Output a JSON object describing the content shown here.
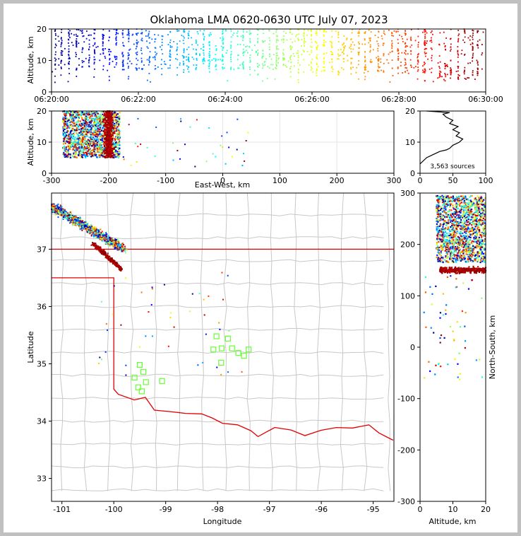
{
  "title": "Oklahoma LMA 0620-0630 UTC July 07, 2023",
  "source_count_label": "3,563 sources",
  "colors": {
    "state_border": "#e00000",
    "county_line": "#c8c8c8",
    "station": "#66ff33",
    "frame": "#c0c0c0"
  },
  "chart_data": [
    {
      "type": "scatter",
      "id": "time_height",
      "xlabel": "",
      "ylabel": "Altitude, km",
      "xlim": [
        "06:20:00",
        "06:30:00"
      ],
      "ylim": [
        0,
        20
      ],
      "xticks": [
        "06:20:00",
        "06:22:00",
        "06:24:00",
        "06:26:00",
        "06:28:00",
        "06:30:00"
      ],
      "yticks": [
        "0",
        "10",
        "20"
      ],
      "color_scale": "time (blue→cyan→green→yellow→orange→red)"
    },
    {
      "type": "scatter",
      "id": "ew_height",
      "xlabel": "East-West, km",
      "ylabel": "Altitude, km",
      "xlim": [
        -300,
        300
      ],
      "ylim": [
        0,
        20
      ],
      "xticks": [
        "-300",
        "-200",
        "-100",
        "0",
        "100",
        "200",
        "300"
      ],
      "yticks": [
        "0",
        "10",
        "20"
      ],
      "grid": true
    },
    {
      "type": "line",
      "id": "alt_histogram",
      "xlabel": "",
      "ylabel": "",
      "xlim": [
        0,
        100
      ],
      "ylim": [
        0,
        20
      ],
      "xticks": [
        "0",
        "50",
        "100"
      ],
      "yticks": [
        "0",
        "10",
        "20"
      ],
      "profile": [
        [
          0,
          3
        ],
        [
          10,
          5
        ],
        [
          20,
          6
        ],
        [
          30,
          7
        ],
        [
          40,
          7.5
        ],
        [
          45,
          8
        ],
        [
          50,
          9
        ],
        [
          60,
          10
        ],
        [
          65,
          11
        ],
        [
          55,
          12
        ],
        [
          60,
          13
        ],
        [
          50,
          14
        ],
        [
          58,
          15
        ],
        [
          45,
          16
        ],
        [
          50,
          17
        ],
        [
          40,
          18
        ],
        [
          35,
          19
        ],
        [
          45,
          19.5
        ],
        [
          10,
          20
        ]
      ]
    },
    {
      "type": "scatter",
      "id": "plan_view",
      "xlabel": "Longitude",
      "ylabel": "Latitude",
      "xlim": [
        -101.2,
        -94.6
      ],
      "ylim": [
        32.6,
        37.98
      ],
      "xticks": [
        "-101",
        "-100",
        "-99",
        "-98",
        "-97",
        "-96",
        "-95"
      ],
      "yticks": [
        "33",
        "34",
        "35",
        "36",
        "37"
      ],
      "stations": [
        [
          -99.5,
          34.98
        ],
        [
          -99.43,
          34.86
        ],
        [
          -99.6,
          34.76
        ],
        [
          -99.38,
          34.68
        ],
        [
          -99.07,
          34.7
        ],
        [
          -99.53,
          34.59
        ],
        [
          -99.46,
          34.52
        ],
        [
          -98.02,
          35.48
        ],
        [
          -97.8,
          35.44
        ],
        [
          -98.08,
          35.25
        ],
        [
          -97.92,
          35.27
        ],
        [
          -97.72,
          35.27
        ],
        [
          -97.6,
          35.19
        ],
        [
          -97.49,
          35.14
        ],
        [
          -97.4,
          35.25
        ],
        [
          -97.93,
          35.02
        ]
      ]
    },
    {
      "type": "scatter",
      "id": "height_ns",
      "xlabel": "Altitude, km",
      "ylabel": "North-South, km",
      "xlim": [
        0,
        20
      ],
      "ylim": [
        -300,
        300
      ],
      "xticks": [
        "0",
        "10",
        "20"
      ],
      "yticks": [
        "-300",
        "-200",
        "-100",
        "0",
        "100",
        "200",
        "300"
      ]
    }
  ]
}
